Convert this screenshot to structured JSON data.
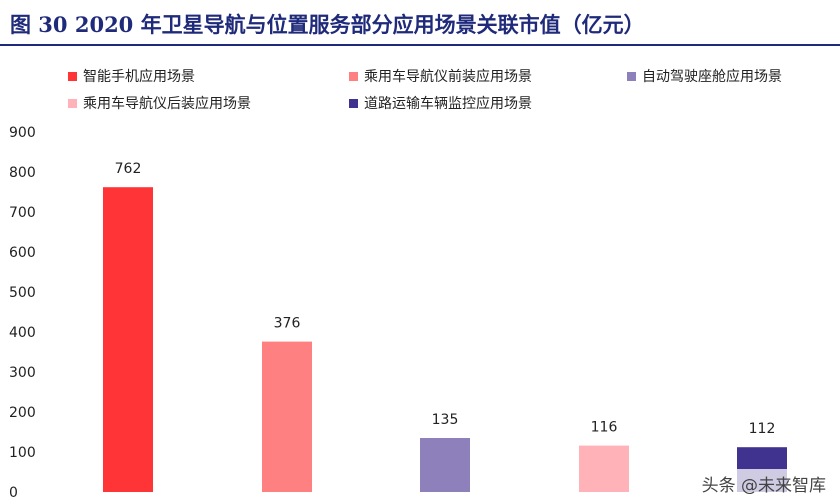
{
  "chart_data": {
    "type": "bar",
    "title": "图 30 2020 年卫星导航与位置服务部分应用场景关联市值（亿元）",
    "categories": [
      "智能手机应用场景",
      "乘用车导航仪前装应用场景",
      "自动驾驶座舱应用场景",
      "乘用车导航仪后装应用场景",
      "道路运输车辆监控应用场景"
    ],
    "values": [
      762,
      376,
      135,
      116,
      112
    ],
    "data_labels": [
      "762",
      "376",
      "135",
      "116",
      "112"
    ],
    "colors": [
      "#fe3436",
      "#ff8080",
      "#8e80ba",
      "#ffb3b8",
      "#40338f"
    ],
    "ylim": [
      0,
      900
    ],
    "yticks": [
      "0",
      "100",
      "200",
      "300",
      "400",
      "500",
      "600",
      "700",
      "800",
      "900"
    ],
    "legend_position": "top",
    "grid": false
  },
  "watermark": "头条 @未来智库"
}
